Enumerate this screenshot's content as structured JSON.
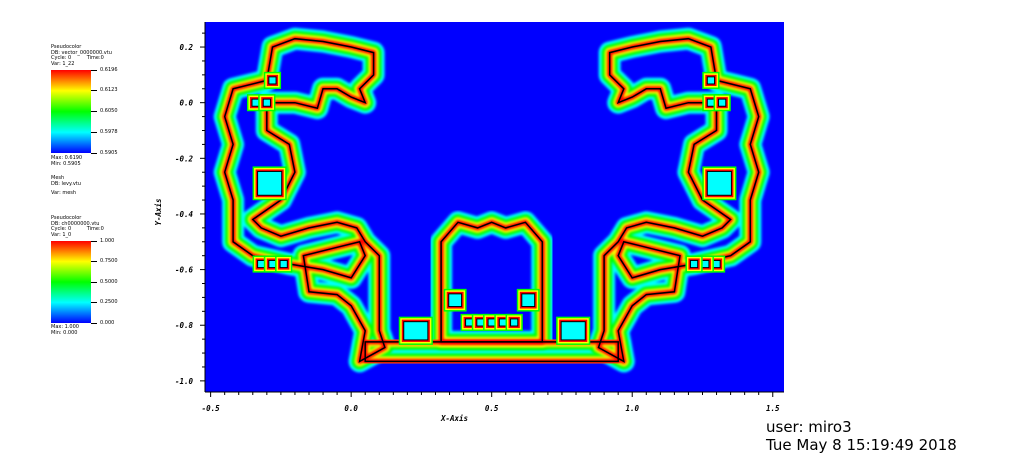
{
  "legend_vector": {
    "title": "Pseudocolor",
    "db": "DB: vector_0000000.vtu",
    "cycle": "Cycle: 0",
    "time": "Time:0",
    "var": "Var: 1_22",
    "ticks": [
      "0.6196",
      "0.6123",
      "0.6050",
      "0.5978",
      "0.5905"
    ],
    "max": "Max: 0.6190",
    "min": "Min: 0.5905"
  },
  "legend_mesh": {
    "title": "Mesh",
    "db": "DB: levy.vtu",
    "var": "Var: mesh"
  },
  "legend_charac": {
    "title": "Pseudocolor",
    "db": "DB: ch0000000.vtu",
    "cycle": "Cycle: 0",
    "time": "Time:0",
    "var": "Var: 1_0",
    "ticks": [
      "1.000",
      "0.7500",
      "0.5000",
      "0.2500",
      "0.000"
    ],
    "max": "Max: 1.000",
    "min": "Min: 0.000"
  },
  "user_info": {
    "user": "user: miro3",
    "date": "Tue May  8 15:19:49 2018"
  },
  "colors": {
    "background_blue": "#0000ff",
    "band_cyan": "#00ffff",
    "band_green": "#00ff00",
    "band_yellow": "#ffff00",
    "band_red": "#ff0000",
    "mesh_line": "#000000"
  },
  "chart_data": {
    "type": "heatmap",
    "xlabel": "X-Axis",
    "ylabel": "Y-Axis",
    "xlim": [
      -0.52,
      1.54
    ],
    "ylim": [
      -1.04,
      0.29
    ],
    "x_ticks": [
      -0.5,
      0.0,
      0.5,
      1.0,
      1.5
    ],
    "x_tick_labels": [
      "-0.5",
      "0.0",
      "0.5",
      "1.0",
      "1.5"
    ],
    "y_ticks": [
      0.2,
      0.0,
      -0.2,
      -0.4,
      -0.6,
      -0.8,
      -1.0
    ],
    "y_tick_labels": [
      "0.2",
      "0.0",
      "-0.2",
      "-0.4",
      "-0.6",
      "-0.8",
      "-1.0"
    ],
    "boundary": [
      [
        0.03,
        -0.93
      ],
      [
        0.05,
        -0.82
      ],
      [
        0.0,
        -0.73
      ],
      [
        -0.05,
        -0.69
      ],
      [
        -0.15,
        -0.68
      ],
      [
        -0.17,
        -0.55
      ],
      [
        -0.05,
        -0.52
      ],
      [
        0.03,
        -0.5
      ],
      [
        0.05,
        -0.55
      ],
      [
        0.0,
        -0.63
      ],
      [
        -0.1,
        -0.6
      ],
      [
        -0.22,
        -0.58
      ],
      [
        -0.35,
        -0.55
      ],
      [
        -0.42,
        -0.5
      ],
      [
        -0.42,
        -0.35
      ],
      [
        -0.45,
        -0.25
      ],
      [
        -0.42,
        -0.15
      ],
      [
        -0.45,
        -0.05
      ],
      [
        -0.42,
        0.05
      ],
      [
        -0.3,
        0.08
      ],
      [
        -0.28,
        0.2
      ],
      [
        -0.2,
        0.23
      ],
      [
        -0.1,
        0.22
      ],
      [
        0.0,
        0.2
      ],
      [
        0.08,
        0.18
      ],
      [
        0.08,
        0.1
      ],
      [
        0.03,
        0.05
      ],
      [
        0.05,
        0.0
      ],
      [
        0.0,
        0.02
      ],
      [
        -0.05,
        0.05
      ],
      [
        -0.1,
        0.05
      ],
      [
        -0.12,
        -0.02
      ],
      [
        -0.2,
        0.0
      ],
      [
        -0.3,
        0.0
      ],
      [
        -0.3,
        -0.1
      ],
      [
        -0.22,
        -0.15
      ],
      [
        -0.2,
        -0.25
      ],
      [
        -0.25,
        -0.35
      ],
      [
        -0.35,
        -0.42
      ],
      [
        -0.32,
        -0.45
      ],
      [
        -0.25,
        -0.48
      ],
      [
        -0.15,
        -0.45
      ],
      [
        -0.05,
        -0.43
      ],
      [
        0.02,
        -0.45
      ],
      [
        0.05,
        -0.5
      ],
      [
        0.1,
        -0.55
      ],
      [
        0.1,
        -0.82
      ],
      [
        0.12,
        -0.88
      ]
    ],
    "cells": [
      [
        -0.36,
        -0.02,
        -0.32,
        0.02
      ],
      [
        -0.32,
        -0.02,
        -0.28,
        0.02
      ],
      [
        -0.3,
        0.06,
        -0.26,
        0.1
      ],
      [
        -0.34,
        -0.6,
        -0.3,
        -0.56
      ],
      [
        -0.3,
        -0.6,
        -0.26,
        -0.56
      ],
      [
        -0.26,
        -0.6,
        -0.22,
        -0.56
      ],
      [
        1.26,
        -0.02,
        1.3,
        0.02
      ],
      [
        1.3,
        -0.02,
        1.34,
        0.02
      ],
      [
        1.26,
        0.06,
        1.3,
        0.1
      ],
      [
        1.28,
        -0.6,
        1.32,
        -0.56
      ],
      [
        1.24,
        -0.6,
        1.28,
        -0.56
      ],
      [
        1.2,
        -0.6,
        1.24,
        -0.56
      ],
      [
        0.4,
        -0.81,
        0.44,
        -0.77
      ],
      [
        0.44,
        -0.81,
        0.48,
        -0.77
      ],
      [
        0.48,
        -0.81,
        0.52,
        -0.77
      ],
      [
        0.52,
        -0.81,
        0.56,
        -0.77
      ],
      [
        0.56,
        -0.81,
        0.6,
        -0.77
      ],
      [
        0.18,
        -0.86,
        0.28,
        -0.78
      ],
      [
        0.74,
        -0.86,
        0.84,
        -0.78
      ],
      [
        -0.34,
        -0.34,
        -0.24,
        -0.24
      ],
      [
        1.26,
        -0.34,
        1.36,
        -0.24
      ],
      [
        0.34,
        -0.74,
        0.4,
        -0.68
      ],
      [
        0.6,
        -0.74,
        0.66,
        -0.68
      ]
    ],
    "grid": false,
    "legend_position": "left"
  }
}
